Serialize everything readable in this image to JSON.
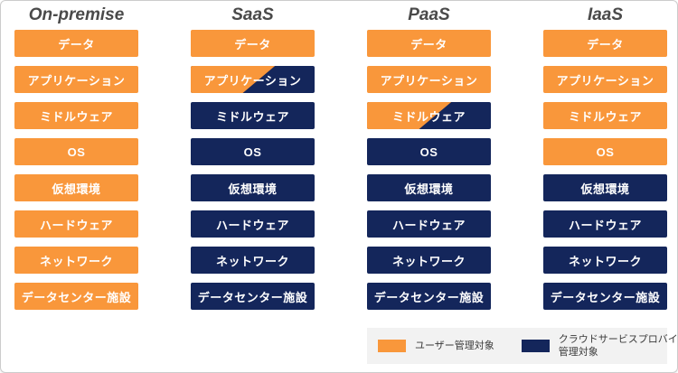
{
  "diagram": {
    "columns": [
      {
        "title": "On-premise",
        "layers": [
          {
            "label": "データ",
            "fill": "user"
          },
          {
            "label": "アプリケーション",
            "fill": "user"
          },
          {
            "label": "ミドルウェア",
            "fill": "user"
          },
          {
            "label": "OS",
            "fill": "user"
          },
          {
            "label": "仮想環境",
            "fill": "user"
          },
          {
            "label": "ハードウェア",
            "fill": "user"
          },
          {
            "label": "ネットワーク",
            "fill": "user"
          },
          {
            "label": "データセンター施設",
            "fill": "user"
          }
        ]
      },
      {
        "title": "SaaS",
        "layers": [
          {
            "label": "データ",
            "fill": "user"
          },
          {
            "label": "アプリケーション",
            "fill": "split"
          },
          {
            "label": "ミドルウェア",
            "fill": "provider"
          },
          {
            "label": "OS",
            "fill": "provider"
          },
          {
            "label": "仮想環境",
            "fill": "provider"
          },
          {
            "label": "ハードウェア",
            "fill": "provider"
          },
          {
            "label": "ネットワーク",
            "fill": "provider"
          },
          {
            "label": "データセンター施設",
            "fill": "provider"
          }
        ]
      },
      {
        "title": "PaaS",
        "layers": [
          {
            "label": "データ",
            "fill": "user"
          },
          {
            "label": "アプリケーション",
            "fill": "user"
          },
          {
            "label": "ミドルウェア",
            "fill": "split"
          },
          {
            "label": "OS",
            "fill": "provider"
          },
          {
            "label": "仮想環境",
            "fill": "provider"
          },
          {
            "label": "ハードウェア",
            "fill": "provider"
          },
          {
            "label": "ネットワーク",
            "fill": "provider"
          },
          {
            "label": "データセンター施設",
            "fill": "provider"
          }
        ]
      },
      {
        "title": "IaaS",
        "layers": [
          {
            "label": "データ",
            "fill": "user"
          },
          {
            "label": "アプリケーション",
            "fill": "user"
          },
          {
            "label": "ミドルウェア",
            "fill": "user"
          },
          {
            "label": "OS",
            "fill": "user"
          },
          {
            "label": "仮想環境",
            "fill": "provider"
          },
          {
            "label": "ハードウェア",
            "fill": "provider"
          },
          {
            "label": "ネットワーク",
            "fill": "provider"
          },
          {
            "label": "データセンター施設",
            "fill": "provider"
          }
        ]
      }
    ]
  },
  "legend": {
    "user_label": "ユーザー管理対象",
    "provider_label_lines": [
      "クラウドサービスプロバイダー",
      "管理対象"
    ]
  },
  "colors": {
    "user_fill": "#F9973B",
    "provider_fill": "#14265B",
    "title_text": "#4A4A4A",
    "legend_background": "#F2F2F2",
    "frame_border": "#CCCCCC"
  }
}
